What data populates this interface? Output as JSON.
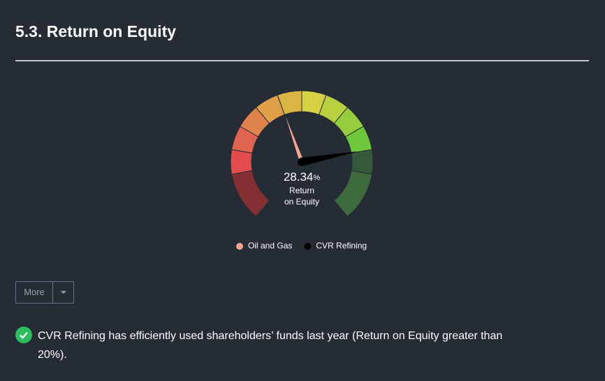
{
  "section_title": "5.3. Return on Equity",
  "chart_data": {
    "type": "gauge",
    "ylim": [
      -50,
      50
    ],
    "value": 28.34,
    "unit": "%",
    "label_lines": [
      "Return",
      "on Equity"
    ],
    "series": [
      {
        "name": "Oil and Gas",
        "color": "#f4a593",
        "values": [
          -7
        ]
      },
      {
        "name": "CVR Refining",
        "color": "#000000",
        "values": [
          28.34
        ]
      }
    ]
  },
  "button": {
    "label": "More"
  },
  "message": {
    "text": "CVR Refining has efficiently used shareholders’ funds last year (Return on Equity greater than 20%)."
  }
}
